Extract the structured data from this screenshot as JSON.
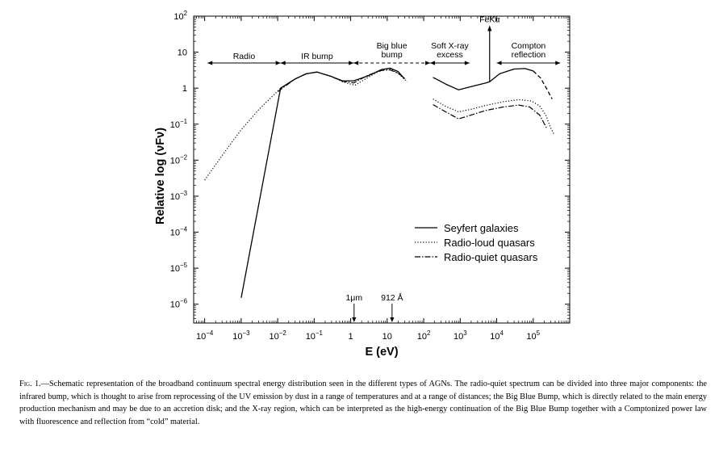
{
  "chart_data": {
    "type": "line",
    "xlabel": "E (eV)",
    "ylabel": "Relative log (νFν)",
    "x_scale": "log",
    "y_scale": "log",
    "xlim": [
      5e-05,
      1000000
    ],
    "ylim": [
      3e-07,
      100
    ],
    "grid": false,
    "legend_position": "lower-right",
    "x_ticks": [
      {
        "value": 0.0001,
        "base": "10",
        "exp": "−4"
      },
      {
        "value": 0.001,
        "base": "10",
        "exp": "−3"
      },
      {
        "value": 0.01,
        "base": "10",
        "exp": "−2"
      },
      {
        "value": 0.1,
        "base": "10",
        "exp": "−1"
      },
      {
        "value": 1,
        "base": "1",
        "exp": ""
      },
      {
        "value": 10,
        "base": "10",
        "exp": ""
      },
      {
        "value": 100,
        "base": "10",
        "exp": "2"
      },
      {
        "value": 1000,
        "base": "10",
        "exp": "3"
      },
      {
        "value": 10000,
        "base": "10",
        "exp": "4"
      },
      {
        "value": 100000,
        "base": "10",
        "exp": "5"
      }
    ],
    "y_ticks": [
      {
        "value": 100,
        "base": "10",
        "exp": "2"
      },
      {
        "value": 10,
        "base": "10",
        "exp": ""
      },
      {
        "value": 1,
        "base": "1",
        "exp": ""
      },
      {
        "value": 0.1,
        "base": "10",
        "exp": "−1"
      },
      {
        "value": 0.01,
        "base": "10",
        "exp": "−2"
      },
      {
        "value": 0.001,
        "base": "10",
        "exp": "−3"
      },
      {
        "value": 0.0001,
        "base": "10",
        "exp": "−4"
      },
      {
        "value": 1e-05,
        "base": "10",
        "exp": "−5"
      },
      {
        "value": 1e-06,
        "base": "10",
        "exp": "−6"
      }
    ],
    "series": [
      {
        "name": "Seyfert galaxies",
        "style": "solid",
        "color": "#000000",
        "segments": [
          [
            [
              0.001,
              1.5e-06
            ],
            [
              0.012,
              1.0
            ],
            [
              0.03,
              1.8
            ],
            [
              0.06,
              2.5
            ],
            [
              0.12,
              2.8
            ],
            [
              0.3,
              2.1
            ],
            [
              0.6,
              1.6
            ],
            [
              1.2,
              1.6
            ],
            [
              3,
              2.2
            ],
            [
              7,
              3.3
            ],
            [
              12,
              3.6
            ],
            [
              20,
              2.9
            ],
            [
              30,
              1.8
            ]
          ],
          [
            [
              180,
              2.0
            ],
            [
              400,
              1.3
            ],
            [
              900,
              0.9
            ],
            [
              2000,
              1.1
            ],
            [
              5000,
              1.4
            ],
            [
              6400,
              1.5
            ],
            [
              12000,
              2.5
            ],
            [
              30000,
              3.4
            ],
            [
              60000,
              3.5
            ],
            [
              100000,
              3.0
            ]
          ],
          [
            [
              100000,
              3.0
            ],
            [
              160000,
              1.9
            ],
            [
              230000,
              1.0
            ],
            [
              330000,
              0.5
            ]
          ]
        ]
      },
      {
        "name": "Radio-loud quasars",
        "style": "dotted",
        "color": "#000000",
        "segments": [
          [
            [
              0.0001,
              0.0028
            ],
            [
              0.0004,
              0.02
            ],
            [
              0.001,
              0.07
            ],
            [
              0.003,
              0.25
            ],
            [
              0.012,
              1.0
            ],
            [
              0.03,
              1.8
            ],
            [
              0.06,
              2.5
            ],
            [
              0.12,
              2.8
            ],
            [
              0.3,
              2.1
            ],
            [
              0.6,
              1.5
            ],
            [
              1.3,
              1.2
            ],
            [
              3,
              2.0
            ],
            [
              7,
              3.2
            ],
            [
              12,
              3.4
            ],
            [
              20,
              2.6
            ],
            [
              35,
              1.5
            ]
          ],
          [
            [
              180,
              0.5
            ],
            [
              400,
              0.31
            ],
            [
              900,
              0.22
            ],
            [
              2000,
              0.26
            ],
            [
              5000,
              0.33
            ],
            [
              15000,
              0.42
            ],
            [
              40000,
              0.48
            ],
            [
              90000,
              0.44
            ],
            [
              150000,
              0.32
            ],
            [
              220000,
              0.18
            ],
            [
              300000,
              0.08
            ],
            [
              380000,
              0.05
            ]
          ]
        ]
      },
      {
        "name": "Radio-quiet quasars",
        "style": "dashdot",
        "color": "#000000",
        "segments": [
          [
            [
              0.01,
              0.8
            ],
            [
              0.03,
              1.8
            ],
            [
              0.06,
              2.5
            ],
            [
              0.12,
              2.8
            ],
            [
              0.3,
              2.1
            ],
            [
              0.6,
              1.55
            ],
            [
              1.2,
              1.4
            ],
            [
              3,
              2.3
            ],
            [
              7,
              3.1
            ],
            [
              12,
              3.2
            ],
            [
              20,
              2.6
            ],
            [
              30,
              1.9
            ]
          ],
          [
            [
              180,
              0.35
            ],
            [
              400,
              0.22
            ],
            [
              900,
              0.14
            ],
            [
              2000,
              0.18
            ],
            [
              5000,
              0.24
            ],
            [
              15000,
              0.3
            ],
            [
              40000,
              0.34
            ],
            [
              80000,
              0.3
            ],
            [
              150000,
              0.18
            ],
            [
              230000,
              0.08
            ]
          ]
        ]
      }
    ],
    "bands": [
      {
        "label_lines": [
          "Radio"
        ],
        "from": 0.00012,
        "to": 0.012,
        "style": "solid"
      },
      {
        "label_lines": [
          "IR bump"
        ],
        "from": 0.012,
        "to": 1.2,
        "style": "solid"
      },
      {
        "label_lines": [
          "Big blue",
          "bump"
        ],
        "from": 1.2,
        "to": 150,
        "style": "dashed"
      },
      {
        "label_lines": [
          "Soft X-ray",
          "excess"
        ],
        "from": 150,
        "to": 1800,
        "style": "solid"
      },
      {
        "label_lines": [
          "Compton",
          "reflection"
        ],
        "from": 10000,
        "to": 550000,
        "style": "solid"
      }
    ],
    "annotations": [
      {
        "text": "FeKα",
        "x": 6400,
        "kind": "line-arrow-up",
        "y_from": 1.5,
        "y_to": 50
      },
      {
        "text": "1μm",
        "x": 1.24,
        "kind": "arrow-down"
      },
      {
        "text": "912 Å",
        "x": 13.6,
        "kind": "arrow-down"
      }
    ]
  },
  "caption": {
    "label": "Fig. 1.",
    "text": "—Schematic representation of the broadband continuum spectral energy distribution seen in the different types of AGNs. The radio-quiet spectrum can be divided into three major components: the infrared bump, which is thought to arise from reprocessing of the UV emission by dust in a range of temperatures and at a range of distances; the Big Blue Bump, which is directly related to the main energy production mechanism and may be due to an accretion disk; and the X-ray region, which can be interpreted as the high-energy continuation of the Big Blue Bump together with a Comptonized power law with fluorescence and reflection from “cold” material."
  }
}
